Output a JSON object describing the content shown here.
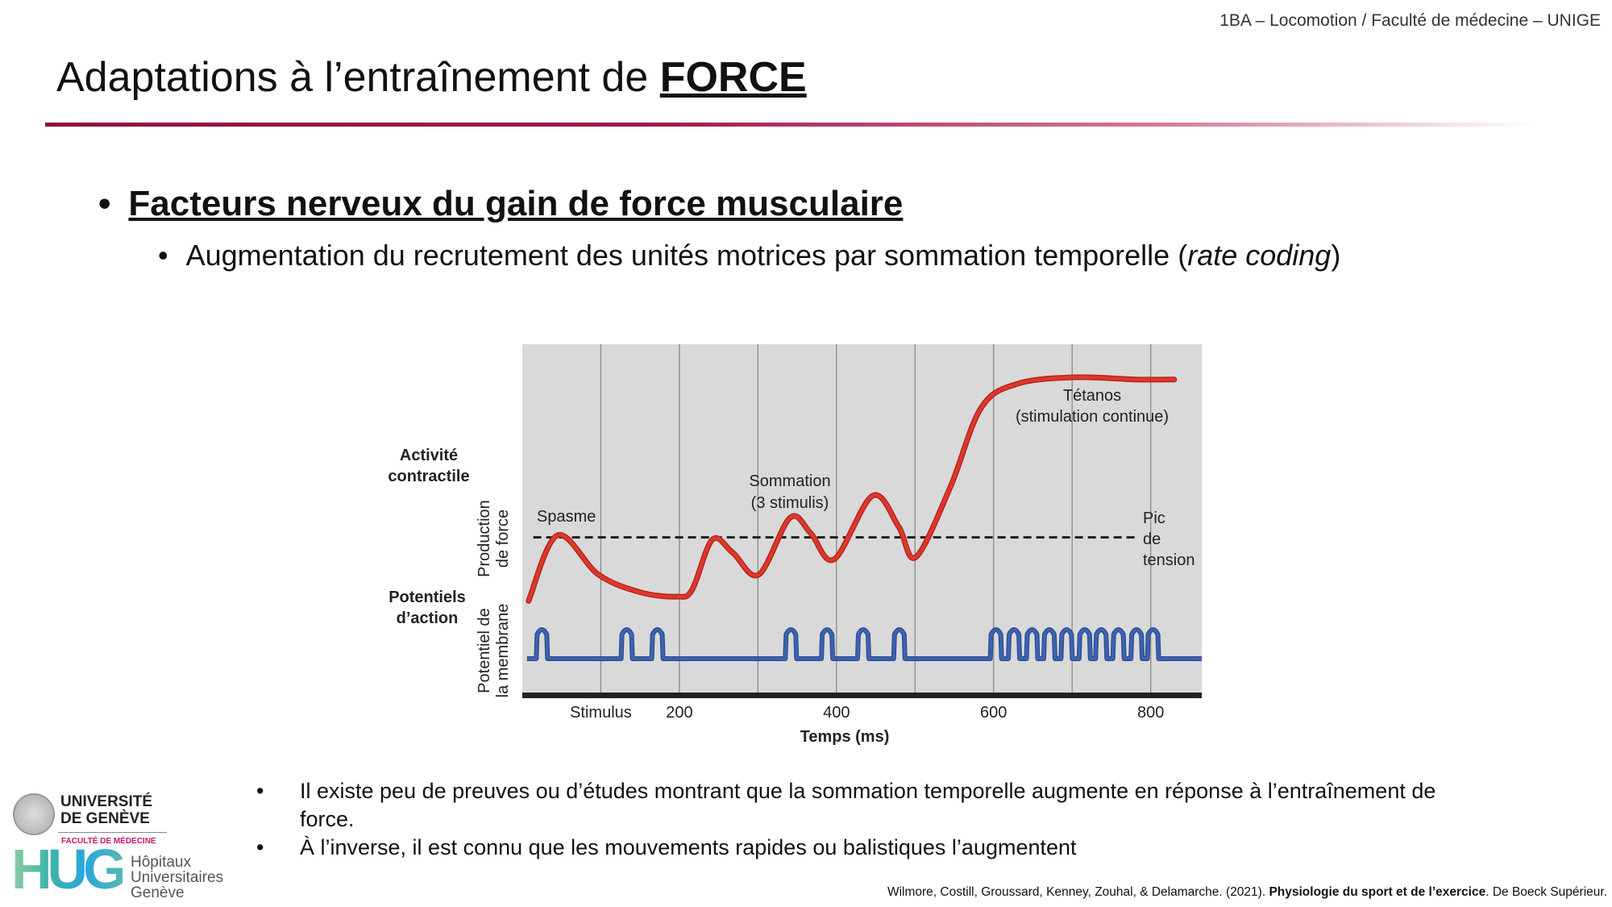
{
  "header": "1BA – Locomotion / Faculté de médecine – UNIGE",
  "title": {
    "prefix": "Adaptations à l’entraînement de ",
    "emphasis": "FORCE"
  },
  "bullet1": "Facteurs nerveux du gain de force musculaire",
  "bullet2": {
    "text": "Augmentation du recrutement des unités motrices par sommation temporelle (",
    "italic": "rate coding",
    "suffix": ")"
  },
  "notes": [
    "Il existe peu de preuves ou d’études montrant que la sommation temporelle augmente en réponse à l’entraînement de force.",
    "À l’inverse, il est connu que les mouvements rapides ou balistiques l’augmentent"
  ],
  "citation": {
    "authors": "Wilmore, Costill, Groussard, Kenney, Zouhal, & Delamarche. (2021). ",
    "book": "Physiologie du sport et de l’exercice",
    "publisher": ". De Boeck Supérieur."
  },
  "logos": {
    "unige": [
      "UNIVERSITÉ",
      "DE GENÈVE"
    ],
    "faculty": "FACULTÉ DE MÉDECINE",
    "hug_mark": "HUG",
    "hug": [
      "Hôpitaux",
      "Universitaires",
      "Genève"
    ]
  },
  "chart_data": {
    "type": "line",
    "xlabel": "Temps (ms)",
    "x_ticks": [
      {
        "value": 100,
        "label": "Stimulus"
      },
      {
        "value": 200,
        "label": "200"
      },
      {
        "value": 400,
        "label": "400"
      },
      {
        "value": 600,
        "label": "600"
      },
      {
        "value": 800,
        "label": "800"
      }
    ],
    "xlim": [
      0,
      865
    ],
    "grid_x_every": 100,
    "row_labels": {
      "top": [
        "Activité",
        "contractile"
      ],
      "bottom": [
        "Potentiels",
        "d’action"
      ]
    },
    "axis_labels": {
      "top": [
        "Production",
        "de force"
      ],
      "bottom": [
        "Potentiel de",
        "la membrane"
      ]
    },
    "force_curve": [
      [
        8,
        -0.02
      ],
      [
        45,
        0.28
      ],
      [
        97,
        0.1
      ],
      [
        150,
        0.02
      ],
      [
        196,
        0.0
      ],
      [
        216,
        0.03
      ],
      [
        242,
        0.26
      ],
      [
        268,
        0.2
      ],
      [
        301,
        0.1
      ],
      [
        341,
        0.36
      ],
      [
        367,
        0.29
      ],
      [
        397,
        0.17
      ],
      [
        446,
        0.46
      ],
      [
        479,
        0.32
      ],
      [
        501,
        0.18
      ],
      [
        545,
        0.5
      ],
      [
        584,
        0.86
      ],
      [
        630,
        0.97
      ],
      [
        703,
        1.0
      ],
      [
        782,
        0.99
      ],
      [
        830,
        0.99
      ]
    ],
    "peak_tension_level": 0.27,
    "action_potentials_ms": [
      25,
      133,
      172,
      342,
      388,
      434,
      480,
      603,
      626,
      649,
      671,
      693,
      716,
      737,
      759,
      782,
      803
    ],
    "annotations": {
      "spasme": "Spasme",
      "sommation": [
        "Sommation",
        "(3 stimulis)"
      ],
      "tetanos": [
        "Tétanos",
        "(stimulation continue)"
      ],
      "pic": [
        "Pic",
        "de",
        "tension"
      ]
    },
    "colors": {
      "force": "#e0362c",
      "potential": "#3d63b0",
      "panel": "#d9d9d9"
    }
  }
}
